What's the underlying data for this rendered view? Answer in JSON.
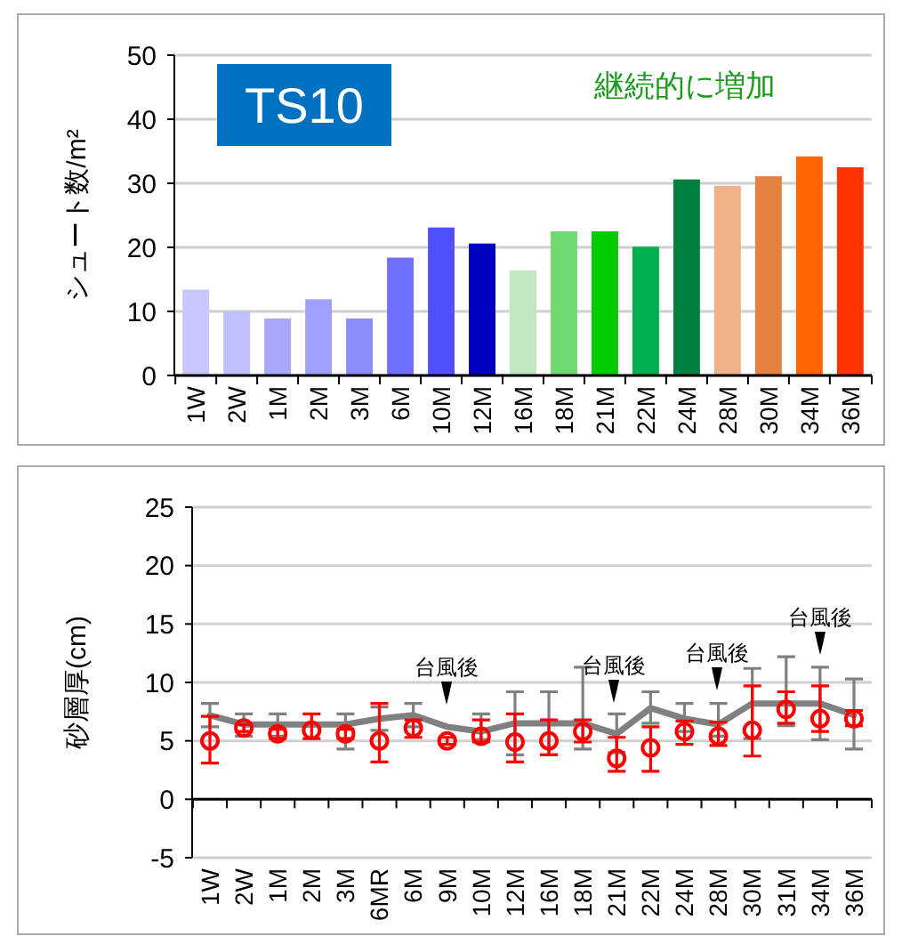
{
  "chart_data": [
    {
      "type": "bar",
      "ylabel": "シュート数/m²",
      "categories": [
        "1W",
        "2W",
        "1M",
        "2M",
        "3M",
        "6M",
        "10M",
        "12M",
        "16M",
        "18M",
        "21M",
        "22M",
        "24M",
        "28M",
        "30M",
        "34M",
        "36M"
      ],
      "values": [
        13.4,
        10.0,
        8.9,
        11.9,
        8.9,
        18.4,
        23.1,
        20.6,
        16.4,
        22.5,
        22.5,
        20.1,
        30.6,
        29.6,
        31.1,
        34.2,
        32.5
      ],
      "colors": [
        "#c8c8ff",
        "#c0c0ff",
        "#a8a8ff",
        "#a0a0ff",
        "#8c8cff",
        "#7070ff",
        "#5050ff",
        "#0000c0",
        "#c0e8c0",
        "#70d870",
        "#00cc00",
        "#00b050",
        "#008040",
        "#f0b088",
        "#e88040",
        "#ff6600",
        "#ff3300"
      ],
      "ylim": [
        0,
        50
      ],
      "yticks": [
        0,
        10,
        20,
        30,
        40,
        50
      ],
      "grid": "y",
      "annotations": [
        "TS10",
        "継続的に増加"
      ]
    },
    {
      "type": "line",
      "ylabel": "砂層厚(cm)",
      "categories": [
        "1W",
        "2W",
        "1M",
        "2M",
        "3M",
        "6MR",
        "6M",
        "9M",
        "10M",
        "12M",
        "16M",
        "18M",
        "21M",
        "22M",
        "24M",
        "28M",
        "30M",
        "31M",
        "34M",
        "36M"
      ],
      "series": [
        {
          "color": "#808080",
          "marker": "none",
          "values": [
            7.2,
            6.4,
            6.4,
            6.4,
            6.4,
            6.9,
            7.2,
            6.2,
            5.8,
            6.5,
            6.5,
            6.5,
            5.6,
            7.8,
            6.9,
            6.4,
            8.2,
            8.2,
            8.2,
            7.2
          ],
          "errors": [
            [
              6.2,
              8.2
            ],
            [
              5.4,
              7.3
            ],
            [
              5.4,
              7.3
            ],
            null,
            [
              4.3,
              7.3
            ],
            [
              5.9,
              7.9
            ],
            [
              6.2,
              8.2
            ],
            null,
            [
              5.1,
              7.3
            ],
            [
              3.8,
              9.2
            ],
            [
              3.8,
              9.2
            ],
            [
              4.3,
              11.3
            ],
            [
              4.0,
              7.3
            ],
            [
              6.5,
              9.2
            ],
            [
              5.8,
              8.2
            ],
            [
              5.4,
              8.2
            ],
            [
              5.2,
              11.2
            ],
            [
              6.3,
              12.2
            ],
            [
              5.1,
              11.3
            ],
            [
              4.3,
              10.3
            ]
          ]
        },
        {
          "type": "scatter",
          "color": "#ff0000",
          "marker": "circle",
          "values": [
            5.0,
            6.1,
            5.6,
            5.9,
            5.6,
            5.0,
            6.1,
            5.0,
            5.4,
            4.9,
            5.0,
            5.8,
            3.5,
            4.4,
            5.8,
            5.4,
            5.9,
            7.7,
            6.9,
            6.9
          ],
          "errors": [
            [
              3.1,
              7.1
            ],
            [
              5.8,
              6.4
            ],
            [
              5.2,
              6.0
            ],
            [
              5.2,
              7.3
            ],
            [
              5.2,
              6.0
            ],
            [
              3.2,
              8.2
            ],
            [
              5.3,
              6.8
            ],
            [
              4.7,
              5.3
            ],
            [
              4.9,
              6.8
            ],
            [
              3.2,
              7.3
            ],
            [
              3.8,
              6.8
            ],
            [
              4.9,
              6.8
            ],
            [
              2.4,
              5.3
            ],
            [
              2.4,
              6.2
            ],
            [
              4.7,
              6.7
            ],
            [
              4.6,
              6.6
            ],
            [
              3.7,
              9.7
            ],
            [
              6.5,
              9.2
            ],
            [
              5.8,
              9.7
            ],
            [
              6.3,
              7.6
            ]
          ]
        }
      ],
      "ylim": [
        -5,
        25
      ],
      "yticks": [
        -5,
        0,
        5,
        10,
        15,
        20,
        25
      ],
      "grid": "y",
      "annotations": [
        "台風後",
        "台風後",
        "台風後",
        "台風後"
      ]
    }
  ]
}
